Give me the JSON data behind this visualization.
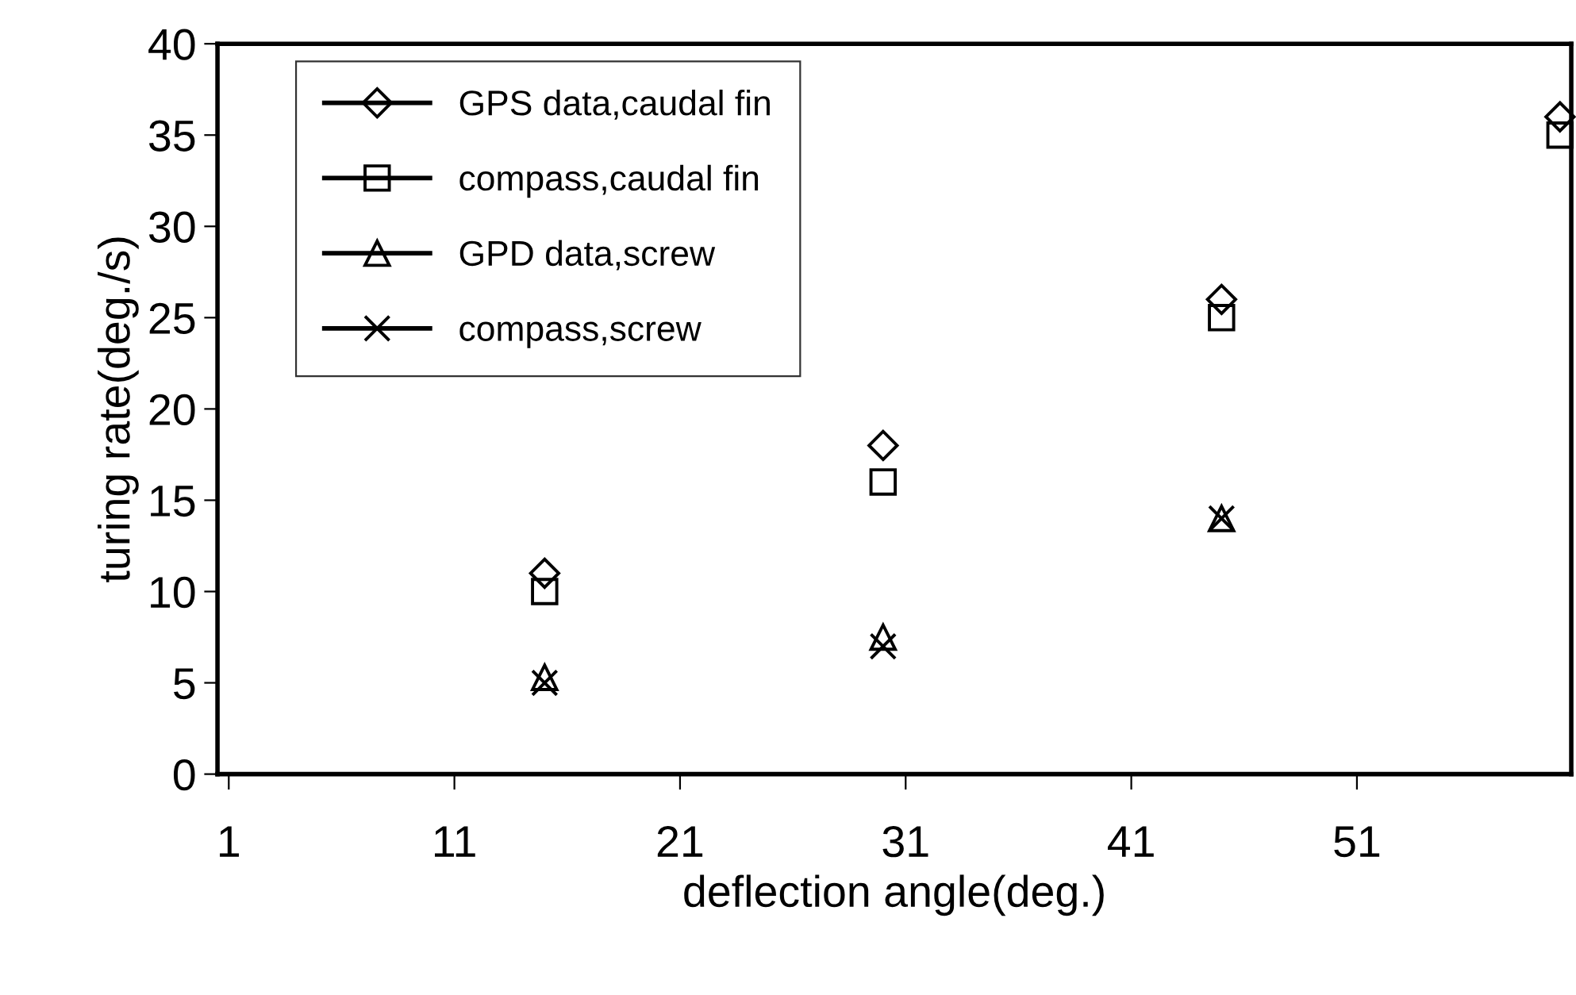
{
  "chart_data": {
    "type": "scatter",
    "xlabel": "deflection angle(deg.)",
    "ylabel": "turing rate(deg./s)",
    "x": [
      15,
      30,
      45,
      60
    ],
    "series": [
      {
        "name": "GPS data,caudal fin",
        "color": "#000000",
        "marker": "diamond",
        "values": [
          11,
          18,
          26,
          36
        ]
      },
      {
        "name": "compass,caudal fin",
        "color": "#000000",
        "marker": "square",
        "values": [
          10,
          16,
          25,
          35
        ]
      },
      {
        "name": "GPD data,screw",
        "color": "#000000",
        "marker": "triangle",
        "values": [
          5.3,
          7.5,
          14,
          null
        ]
      },
      {
        "name": "compass,screw",
        "color": "#000000",
        "marker": "cross",
        "values": [
          5,
          7,
          14,
          null
        ]
      }
    ],
    "xlim": [
      0.5,
      60.5
    ],
    "xticks": [
      1,
      11,
      21,
      31,
      41,
      51
    ],
    "ylim": [
      0,
      40
    ],
    "yticks": [
      0,
      5,
      10,
      15,
      20,
      25,
      30,
      35,
      40
    ],
    "grid": false,
    "legend": "top left"
  }
}
